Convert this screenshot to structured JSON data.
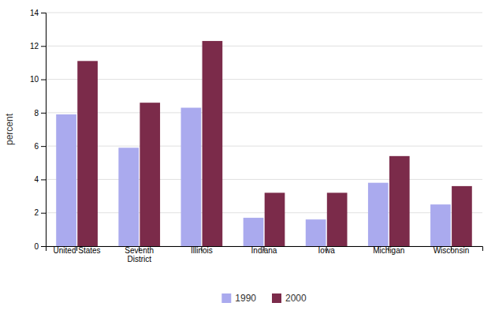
{
  "chart_data": {
    "type": "bar",
    "categories": [
      "United States",
      "Seventh\nDistrict",
      "Illinois",
      "Indiana",
      "Iowa",
      "Michigan",
      "Wisconsin"
    ],
    "series": [
      {
        "name": "1990",
        "color": "#AAAAEE",
        "values": [
          7.9,
          5.9,
          8.3,
          1.7,
          1.6,
          3.8,
          2.5
        ]
      },
      {
        "name": "2000",
        "color": "#7B2B4A",
        "values": [
          11.1,
          8.6,
          12.3,
          3.2,
          3.2,
          5.4,
          3.6
        ]
      }
    ],
    "ylabel": "percent",
    "ylim": [
      0,
      14
    ],
    "yticks": [
      0,
      2,
      4,
      6,
      8,
      10,
      12,
      14
    ],
    "grid": true,
    "legend": "bottom"
  }
}
